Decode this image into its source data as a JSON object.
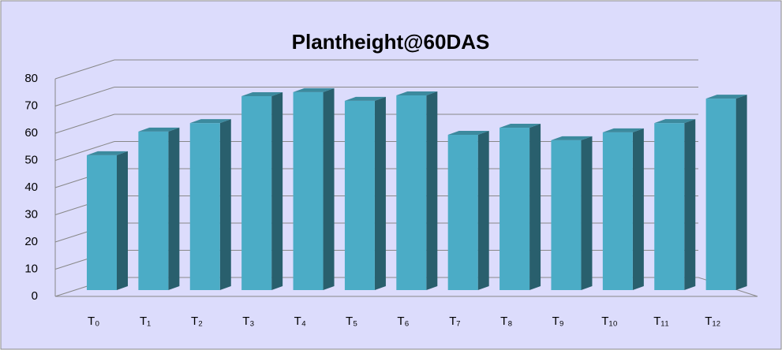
{
  "chart_data": {
    "type": "bar3d",
    "title": "Plantheight@60DAS",
    "categories": [
      "T₀",
      "T₁",
      "T₂",
      "T₃",
      "T₄",
      "T₅",
      "T₆",
      "T₇",
      "T₈",
      "T₉",
      "T₁₀",
      "T₁₁",
      "T₁₂"
    ],
    "values": [
      49.6,
      58.3,
      61.4,
      71.3,
      72.8,
      69.6,
      71.6,
      57.1,
      59.7,
      55.1,
      58,
      61.4,
      70.4
    ],
    "color": "#4bacc6",
    "ylim": [
      0,
      80
    ],
    "yticks": [
      0,
      10,
      20,
      30,
      40,
      50,
      60,
      70,
      80
    ],
    "grid": true
  }
}
